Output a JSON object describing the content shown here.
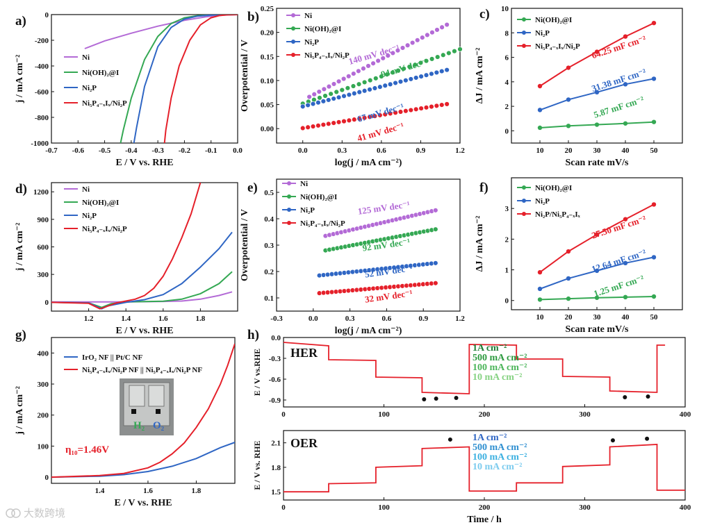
{
  "watermark": "大数跨境",
  "colors": {
    "Ni": "#b36ad6",
    "NiOH": "#34a853",
    "Ni2P": "#2f66c4",
    "Main": "#e5202a",
    "IrO2": "#2f66c4",
    "black": "#111111"
  },
  "chart_data": [
    {
      "id": "a",
      "label": "a)",
      "type": "line",
      "xlabel": "E / V  vs. RHE",
      "ylabel": "j / mA cm⁻²",
      "xlim": [
        -0.7,
        0.0
      ],
      "ylim": [
        -1000,
        0
      ],
      "xticks": [
        "-0.7",
        "-0.6",
        "-0.5",
        "-0.4",
        "-0.3",
        "-0.2",
        "-0.1",
        "0.0"
      ],
      "yticks": [
        "-1000",
        "-800",
        "-600",
        "-400",
        "-200",
        "0"
      ],
      "legend": [
        "Ni",
        "Ni(OH)₂@I",
        "Ni₂P",
        "Ni₅P₄₋ₓIₓ/Ni₂P"
      ],
      "series": [
        {
          "name": "Ni",
          "color": "#b36ad6",
          "x": [
            -0.575,
            -0.5,
            -0.4,
            -0.3,
            -0.2,
            -0.12,
            -0.06,
            0.0
          ],
          "y": [
            -265,
            -205,
            -145,
            -90,
            -45,
            -18,
            -5,
            0
          ]
        },
        {
          "name": "Ni(OH)₂@I",
          "color": "#34a853",
          "x": [
            -0.44,
            -0.43,
            -0.4,
            -0.35,
            -0.3,
            -0.25,
            -0.2,
            -0.15,
            -0.1,
            -0.05,
            0.0
          ],
          "y": [
            -1000,
            -900,
            -650,
            -350,
            -170,
            -70,
            -25,
            -8,
            -3,
            -1,
            0
          ]
        },
        {
          "name": "Ni₂P",
          "color": "#2f66c4",
          "x": [
            -0.39,
            -0.38,
            -0.35,
            -0.3,
            -0.25,
            -0.2,
            -0.15,
            -0.1,
            -0.05,
            0.0
          ],
          "y": [
            -1000,
            -880,
            -560,
            -250,
            -100,
            -35,
            -12,
            -4,
            -1,
            0
          ]
        },
        {
          "name": "Ni₅P₄₋ₓIₓ/Ni₂P",
          "color": "#e5202a",
          "x": [
            -0.275,
            -0.27,
            -0.25,
            -0.22,
            -0.18,
            -0.14,
            -0.1,
            -0.07,
            -0.04,
            0.0
          ],
          "y": [
            -1000,
            -900,
            -650,
            -400,
            -200,
            -80,
            -25,
            -8,
            -2,
            0
          ]
        }
      ]
    },
    {
      "id": "b",
      "label": "b)",
      "type": "scatter",
      "xlabel": "log(j / mA cm⁻²)",
      "ylabel": "Overpotential / V",
      "xlim": [
        -0.2,
        1.2
      ],
      "ylim": [
        -0.03,
        0.25
      ],
      "xticks": [
        "0.0",
        "0.3",
        "0.6",
        "0.9",
        "1.2"
      ],
      "yticks": [
        "0.00",
        "0.05",
        "0.10",
        "0.15",
        "0.20",
        "0.25"
      ],
      "legend": [
        "Ni",
        "Ni(OH)₂@I",
        "Ni₂P",
        "Ni₅P₄₋ₓIₓ/Ni₂P"
      ],
      "series": [
        {
          "name": "Ni",
          "color": "#b36ad6",
          "x0": 0.05,
          "x1": 1.1,
          "y0": 0.066,
          "y1": 0.216
        },
        {
          "name": "Ni(OH)₂@I",
          "color": "#34a853",
          "x0": 0.0,
          "x1": 1.2,
          "y0": 0.052,
          "y1": 0.165
        },
        {
          "name": "Ni₂P",
          "color": "#2f66c4",
          "x0": 0.0,
          "x1": 1.1,
          "y0": 0.046,
          "y1": 0.122
        },
        {
          "name": "Ni₅P₄₋ₓIₓ/Ni₂P",
          "color": "#e5202a",
          "x0": 0.0,
          "x1": 1.1,
          "y0": 0.001,
          "y1": 0.051
        }
      ],
      "annotations": [
        {
          "text": "140 mV dec⁻¹",
          "color": "#b36ad6",
          "x": 0.55,
          "y": 0.148
        },
        {
          "text": "94 mV dec⁻¹",
          "color": "#34a853",
          "x": 0.78,
          "y": 0.12
        },
        {
          "text": "67 mV dec⁻¹",
          "color": "#2f66c4",
          "x": 0.6,
          "y": 0.027
        },
        {
          "text": "41 mV dec⁻¹",
          "color": "#e5202a",
          "x": 0.6,
          "y": -0.013
        }
      ]
    },
    {
      "id": "c",
      "label": "c)",
      "type": "line",
      "xlabel": "Scan rate mV/s",
      "ylabel": "ΔJ / mA cm⁻²",
      "xlim": [
        0,
        60
      ],
      "ylim": [
        -1,
        10
      ],
      "xticks": [
        "10",
        "20",
        "30",
        "40",
        "50"
      ],
      "yticks": [
        "0",
        "2",
        "4",
        "6",
        "8",
        "10"
      ],
      "legend": [
        "Ni(OH)₂@I",
        "Ni₂P",
        "Ni₅P₄₋ₓIₓ/Ni₂P"
      ],
      "series": [
        {
          "name": "Ni(OH)₂@I",
          "color": "#34a853",
          "x": [
            10,
            20,
            30,
            40,
            50
          ],
          "y": [
            0.25,
            0.4,
            0.5,
            0.6,
            0.72
          ]
        },
        {
          "name": "Ni₂P",
          "color": "#2f66c4",
          "x": [
            10,
            20,
            30,
            40,
            50
          ],
          "y": [
            1.7,
            2.55,
            3.15,
            3.8,
            4.25
          ]
        },
        {
          "name": "Ni₅P₄₋ₓIₓ/Ni₂P",
          "color": "#e5202a",
          "x": [
            10,
            20,
            30,
            40,
            50
          ],
          "y": [
            3.65,
            5.15,
            6.45,
            7.7,
            8.8
          ]
        }
      ],
      "annotations": [
        {
          "text": "64.25 mF cm⁻²",
          "color": "#e5202a",
          "x": 38,
          "y": 6.6
        },
        {
          "text": "31.38 mF cm⁻²",
          "color": "#2f66c4",
          "x": 38,
          "y": 3.9
        },
        {
          "text": "5.87 mF cm⁻²",
          "color": "#34a853",
          "x": 38,
          "y": 1.7
        }
      ]
    },
    {
      "id": "d",
      "label": "d)",
      "type": "line",
      "xlabel": "E / V  vs. RHE",
      "ylabel": "j / mA cm⁻²",
      "xlim": [
        1.0,
        2.0
      ],
      "ylim": [
        -100,
        1300
      ],
      "xticks": [
        "1.2",
        "1.4",
        "1.6",
        "1.8"
      ],
      "yticks": [
        "0",
        "300",
        "600",
        "900",
        "1200"
      ],
      "legend": [
        "Ni",
        "Ni(OH)₂@I",
        "Ni₂P",
        "Ni₅P₄₋ₓIₓ/Ni₂P"
      ],
      "series": [
        {
          "name": "Ni",
          "color": "#b36ad6",
          "x": [
            1.0,
            1.2,
            1.4,
            1.6,
            1.7,
            1.8,
            1.9,
            1.97
          ],
          "y": [
            0,
            0,
            0,
            5,
            10,
            30,
            70,
            110
          ]
        },
        {
          "name": "Ni(OH)₂@I",
          "color": "#34a853",
          "x": [
            1.0,
            1.2,
            1.27,
            1.32,
            1.4,
            1.6,
            1.7,
            1.8,
            1.9,
            1.97
          ],
          "y": [
            -5,
            -10,
            -60,
            -20,
            0,
            8,
            30,
            90,
            200,
            330
          ]
        },
        {
          "name": "Ni₂P",
          "color": "#2f66c4",
          "x": [
            1.0,
            1.2,
            1.27,
            1.3,
            1.4,
            1.5,
            1.6,
            1.7,
            1.8,
            1.9,
            1.97
          ],
          "y": [
            -5,
            -10,
            -75,
            -45,
            -5,
            25,
            80,
            200,
            380,
            580,
            760
          ]
        },
        {
          "name": "Ni₅P₄₋ₓIₓ/Ni₂P",
          "color": "#e5202a",
          "x": [
            1.0,
            1.2,
            1.26,
            1.29,
            1.35,
            1.45,
            1.5,
            1.55,
            1.6,
            1.65,
            1.7,
            1.75,
            1.8
          ],
          "y": [
            -5,
            -15,
            -75,
            -55,
            -10,
            30,
            70,
            150,
            280,
            470,
            700,
            960,
            1300
          ]
        }
      ]
    },
    {
      "id": "e",
      "label": "e)",
      "type": "scatter",
      "xlabel": "log(j / mA cm⁻²)",
      "ylabel": "Overpotential / V",
      "xlim": [
        -0.3,
        1.2
      ],
      "ylim": [
        0.05,
        0.55
      ],
      "xticks": [
        "-0.3",
        "0.0",
        "0.3",
        "0.6",
        "0.9",
        "1.2"
      ],
      "yticks": [
        "0.1",
        "0.2",
        "0.3",
        "0.4",
        "0.5"
      ],
      "legend": [
        "Ni",
        "Ni(OH)₂@I",
        "Ni₂P",
        "Ni₅P₄₋ₓIₓ/Ni₂P"
      ],
      "series": [
        {
          "name": "Ni",
          "color": "#b36ad6",
          "x0": 0.1,
          "x1": 1.0,
          "y0": 0.335,
          "y1": 0.432
        },
        {
          "name": "Ni(OH)₂@I",
          "color": "#34a853",
          "x0": 0.1,
          "x1": 1.0,
          "y0": 0.28,
          "y1": 0.36
        },
        {
          "name": "Ni₂P",
          "color": "#2f66c4",
          "x0": 0.05,
          "x1": 1.0,
          "y0": 0.185,
          "y1": 0.232
        },
        {
          "name": "Ni₅P₄₋ₓIₓ/Ni₂P",
          "color": "#e5202a",
          "x0": 0.05,
          "x1": 1.0,
          "y0": 0.118,
          "y1": 0.156
        }
      ],
      "annotations": [
        {
          "text": "125 mV dec⁻¹",
          "color": "#b36ad6",
          "x": 0.58,
          "y": 0.43
        },
        {
          "text": "92 mV dec⁻¹",
          "color": "#34a853",
          "x": 0.6,
          "y": 0.29
        },
        {
          "text": "52 mV dec⁻¹",
          "color": "#2f66c4",
          "x": 0.62,
          "y": 0.19
        },
        {
          "text": "32 mV dec⁻¹",
          "color": "#e5202a",
          "x": 0.62,
          "y": 0.095
        }
      ]
    },
    {
      "id": "f",
      "label": "f)",
      "type": "line",
      "xlabel": "Scan rate mV/s",
      "ylabel": "ΔJ / mA cm⁻²",
      "xlim": [
        0,
        60
      ],
      "ylim": [
        -0.3,
        4.0
      ],
      "xticks": [
        "10",
        "20",
        "30",
        "40",
        "50"
      ],
      "yticks": [
        "0",
        "1",
        "2",
        "3"
      ],
      "legend": [
        "Ni(OH)₂@I",
        "Ni₂P",
        "Ni₂P/Ni₅P₄₋ₓIₓ"
      ],
      "series": [
        {
          "name": "Ni(OH)₂@I",
          "color": "#34a853",
          "x": [
            10,
            20,
            30,
            40,
            50
          ],
          "y": [
            0.03,
            0.06,
            0.09,
            0.11,
            0.13
          ]
        },
        {
          "name": "Ni₂P",
          "color": "#2f66c4",
          "x": [
            10,
            20,
            30,
            40,
            50
          ],
          "y": [
            0.38,
            0.72,
            0.97,
            1.22,
            1.41
          ]
        },
        {
          "name": "Ni₂P/Ni₅P₄₋ₓIₓ",
          "color": "#e5202a",
          "x": [
            10,
            20,
            30,
            40,
            50
          ],
          "y": [
            0.92,
            1.6,
            2.15,
            2.65,
            3.13
          ]
        }
      ],
      "annotations": [
        {
          "text": "27.50 mF cm⁻²",
          "color": "#e5202a",
          "x": 38,
          "y": 2.3
        },
        {
          "text": "12.64 mF cm⁻²",
          "color": "#2f66c4",
          "x": 38,
          "y": 1.2
        },
        {
          "text": "1.25 mF cm⁻²",
          "color": "#34a853",
          "x": 38,
          "y": 0.38
        }
      ]
    },
    {
      "id": "g",
      "label": "g)",
      "type": "line",
      "xlabel": "E / V  vs. RHE",
      "ylabel": "j / mA cm⁻²",
      "xlim": [
        1.2,
        1.96
      ],
      "ylim": [
        -20,
        450
      ],
      "xticks": [
        "1.4",
        "1.6",
        "1.8"
      ],
      "yticks": [
        "0",
        "100",
        "200",
        "300",
        "400"
      ],
      "legend": [
        "IrO₂ NF || Pt/C NF",
        "Ni₅P₄₋ₓIₓ/Ni₂P NF || Ni₅P₄₋ₓIₓ/Ni₂P NF"
      ],
      "series": [
        {
          "name": "IrO₂ NF || Pt/C NF",
          "color": "#2f66c4",
          "x": [
            1.2,
            1.4,
            1.5,
            1.6,
            1.7,
            1.8,
            1.9,
            1.96
          ],
          "y": [
            0,
            3,
            8,
            18,
            35,
            60,
            95,
            112
          ]
        },
        {
          "name": "Ni₅P₄₋ₓIₓ/Ni₂P NF || Ni₅P₄₋ₓIₓ/Ni₂P NF",
          "color": "#e5202a",
          "x": [
            1.2,
            1.4,
            1.5,
            1.6,
            1.65,
            1.7,
            1.75,
            1.8,
            1.85,
            1.9,
            1.93,
            1.96
          ],
          "y": [
            0,
            5,
            12,
            30,
            48,
            75,
            110,
            160,
            220,
            300,
            360,
            430
          ]
        }
      ],
      "annotations": [
        {
          "text": "η₁₀=1.46V",
          "color": "#e5202a"
        }
      ],
      "inset": {
        "labels": [
          "H₂",
          "O₂"
        ]
      }
    },
    {
      "id": "h1",
      "label": "h)",
      "type": "line",
      "tag": "HER",
      "tag_color": "#34a853",
      "xlabel": "",
      "ylabel": "E / V vs.RHE",
      "xlim": [
        0,
        400
      ],
      "ylim": [
        -1.0,
        0.0
      ],
      "xticks": [
        "0",
        "100",
        "200",
        "300",
        "400"
      ],
      "yticks": [
        "-0.9",
        "-0.6",
        "-0.3",
        "0.0"
      ],
      "steps": [
        [
          0,
          45,
          0.07,
          0.12
        ],
        [
          45,
          92,
          0.32,
          0.33
        ],
        [
          92,
          138,
          0.57,
          0.58
        ],
        [
          138,
          185,
          0.79,
          0.81
        ],
        [
          185,
          232,
          0.1,
          0.11
        ],
        [
          232,
          278,
          0.31,
          0.31
        ],
        [
          278,
          325,
          0.56,
          0.57
        ],
        [
          325,
          372,
          0.77,
          0.79
        ],
        [
          372,
          380,
          0.11,
          0.11
        ]
      ],
      "dots": [
        [
          140,
          -0.89
        ],
        [
          152,
          -0.88
        ],
        [
          172,
          -0.87
        ],
        [
          340,
          -0.86
        ],
        [
          363,
          -0.85
        ]
      ],
      "labels": [
        {
          "text": "1A cm⁻²",
          "color": "#1e7d33"
        },
        {
          "text": "500 mA cm⁻²",
          "color": "#2c9a3e"
        },
        {
          "text": "100 mA cm⁻²",
          "color": "#4cb55a"
        },
        {
          "text": "10 mA cm⁻²",
          "color": "#86d282"
        }
      ]
    },
    {
      "id": "h2",
      "label": "",
      "type": "line",
      "tag": "OER",
      "tag_color": "#2f66c4",
      "xlabel": "Time / h",
      "ylabel": "E / V vs. RHE",
      "xlim": [
        0,
        400
      ],
      "ylim": [
        1.4,
        2.25
      ],
      "xticks": [
        "0",
        "100",
        "200",
        "300",
        "400"
      ],
      "yticks": [
        "1.5",
        "1.8",
        "2.1"
      ],
      "steps": [
        [
          0,
          45,
          1.5,
          1.5
        ],
        [
          45,
          92,
          1.6,
          1.61
        ],
        [
          92,
          138,
          1.8,
          1.82
        ],
        [
          138,
          185,
          2.03,
          2.05
        ],
        [
          185,
          232,
          1.51,
          1.51
        ],
        [
          232,
          278,
          1.61,
          1.61
        ],
        [
          278,
          325,
          1.81,
          1.83
        ],
        [
          325,
          372,
          2.05,
          2.08
        ],
        [
          372,
          400,
          1.52,
          1.52
        ]
      ],
      "dots": [
        [
          166,
          2.14
        ],
        [
          328,
          2.13
        ],
        [
          362,
          2.15
        ]
      ],
      "labels": [
        {
          "text": "1A cm⁻²",
          "color": "#2f66c4"
        },
        {
          "text": "500 mA cm⁻²",
          "color": "#2f8fd0"
        },
        {
          "text": "100 mA cm⁻²",
          "color": "#3cb0e0"
        },
        {
          "text": "10 mA cm⁻²",
          "color": "#7ccbee"
        }
      ]
    }
  ]
}
